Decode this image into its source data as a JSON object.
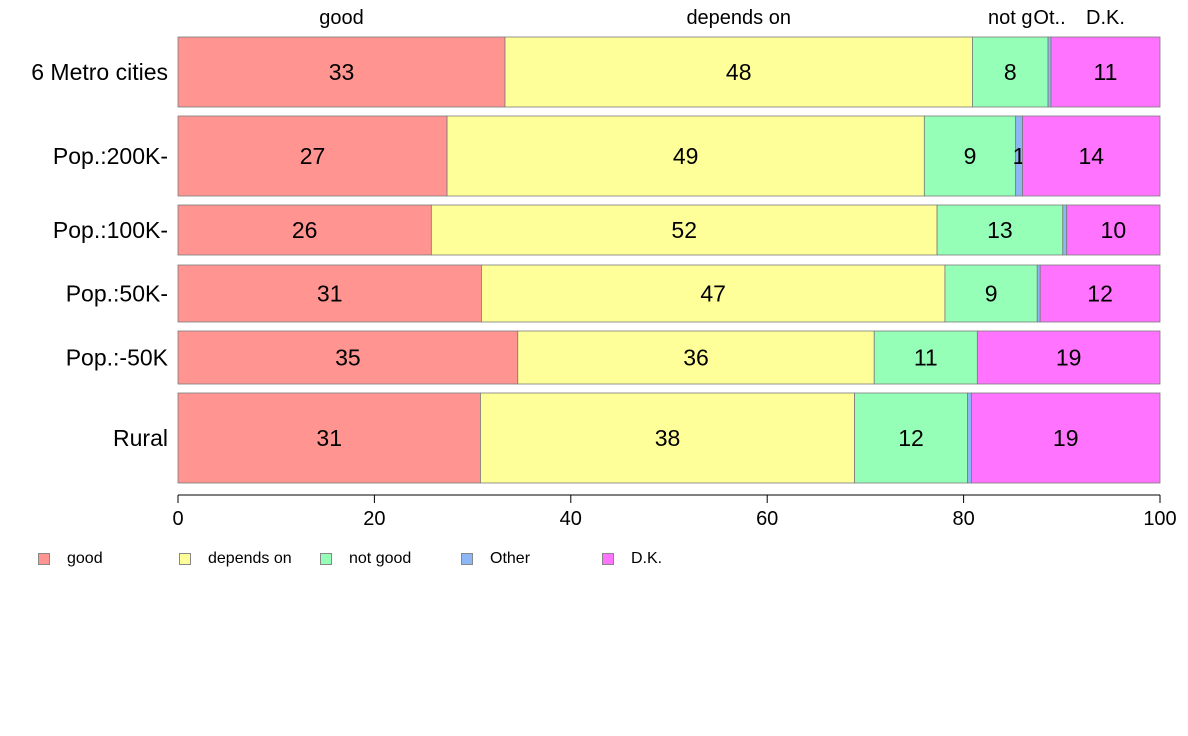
{
  "chart_data": {
    "type": "bar",
    "orientation": "horizontal",
    "stacked": true,
    "categories": [
      "6 Metro cities",
      "Pop.:200K-",
      "Pop.:100K-",
      "Pop.:50K-",
      "Pop.:-50K",
      "Rural"
    ],
    "series": [
      {
        "name": "good",
        "color": "#FF9490",
        "values": [
          33.3,
          27.4,
          25.8,
          30.9,
          34.6,
          30.8
        ]
      },
      {
        "name": "depends on",
        "color": "#FFFF9A",
        "values": [
          47.6,
          48.6,
          51.5,
          47.2,
          36.3,
          38.1
        ]
      },
      {
        "name": "not good",
        "color": "#95FFB8",
        "values": [
          7.7,
          9.3,
          12.8,
          9.4,
          10.5,
          11.5
        ]
      },
      {
        "name": "Other",
        "color": "#8DB6F4",
        "values": [
          0.3,
          0.7,
          0.4,
          0.3,
          0.0,
          0.4
        ]
      },
      {
        "name": "D.K.",
        "color": "#FF73FF",
        "values": [
          11.1,
          14.0,
          9.5,
          12.2,
          18.6,
          19.2
        ]
      }
    ],
    "data_labels": [
      [
        "33",
        "48",
        "8",
        "",
        "11"
      ],
      [
        "27",
        "49",
        "9",
        "1",
        "14"
      ],
      [
        "26",
        "52",
        "13",
        "",
        "10"
      ],
      [
        "31",
        "47",
        "9",
        "",
        "12"
      ],
      [
        "35",
        "36",
        "11",
        "",
        "19"
      ],
      [
        "31",
        "38",
        "12",
        "",
        "19"
      ]
    ],
    "top_labels": [
      "good",
      "depends on",
      "not good",
      "Other",
      "D.K."
    ],
    "top_labels_display": [
      "good",
      "depends on",
      "not g",
      "Ot..",
      "D.K."
    ],
    "xlim": [
      0,
      100
    ],
    "xticks": [
      "0",
      "20",
      "40",
      "60",
      "80",
      "100"
    ],
    "legend_position": "bottom-left",
    "grid": false
  }
}
